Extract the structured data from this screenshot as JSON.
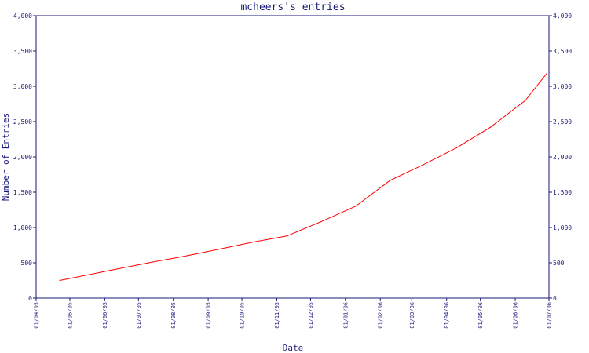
{
  "chart_data": {
    "type": "line",
    "title": "mcheers's entries",
    "xlabel": "Date",
    "ylabel": "Number of Entries",
    "ylim": [
      0,
      4000
    ],
    "y_ticks": [
      "0",
      "500",
      "1,000",
      "1,500",
      "2,000",
      "2,500",
      "3,000",
      "3,500",
      "4,000"
    ],
    "x_ticks": [
      "01/04/05",
      "01/05/05",
      "01/06/05",
      "01/07/05",
      "01/08/05",
      "01/09/05",
      "01/10/05",
      "01/11/05",
      "01/12/05",
      "01/01/06",
      "01/02/06",
      "01/03/06",
      "01/04/06",
      "01/05/06",
      "01/06/06",
      "01/07/06"
    ],
    "xlim": [
      "2005-04-01",
      "2006-07-01"
    ],
    "grid": false,
    "series": [
      {
        "color": "#ff0000",
        "x": [
          "2005-04-22",
          "2005-06-05",
          "2005-07-10",
          "2005-08-10",
          "2005-09-10",
          "2005-10-10",
          "2005-11-10",
          "2005-12-10",
          "2006-01-10",
          "2006-02-10",
          "2006-03-10",
          "2006-04-10",
          "2006-05-10",
          "2006-06-10",
          "2006-06-29"
        ],
        "y": [
          250,
          390,
          500,
          590,
          690,
          790,
          880,
          1080,
          1300,
          1670,
          1880,
          2130,
          2420,
          2800,
          3180
        ]
      }
    ]
  }
}
